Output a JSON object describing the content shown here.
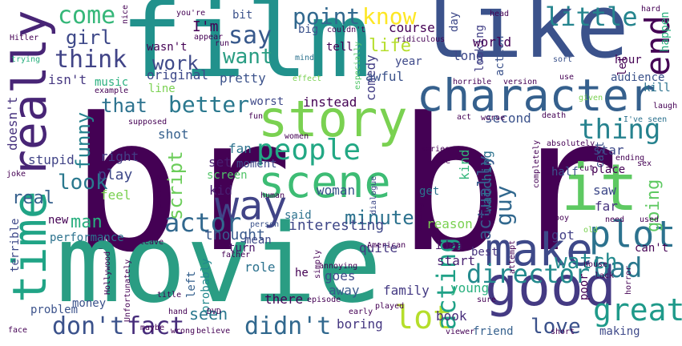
{
  "words": [
    {
      "text": "br",
      "color": "#440154"
    },
    {
      "text": "br",
      "color": "#440154"
    },
    {
      "text": "film",
      "color": "#21918c"
    },
    {
      "text": "movie",
      "color": "#2a9d83"
    },
    {
      "text": "like",
      "color": "#3b528b"
    },
    {
      "text": "it",
      "color": "#5ec962"
    },
    {
      "text": "character",
      "color": "#35608d"
    },
    {
      "text": "good",
      "color": "#443a83"
    },
    {
      "text": "story",
      "color": "#7ad151"
    },
    {
      "text": "scene",
      "color": "#3dbc74"
    },
    {
      "text": "make",
      "color": "#3e4989"
    },
    {
      "text": "really",
      "color": "#482576"
    },
    {
      "text": "time",
      "color": "#20a486"
    },
    {
      "text": "way",
      "color": "#414487"
    },
    {
      "text": "people",
      "color": "#22a884"
    },
    {
      "text": "end",
      "color": "#440154"
    },
    {
      "text": "plot",
      "color": "#2c728e"
    },
    {
      "text": "thing",
      "color": "#26828e"
    },
    {
      "text": "bad",
      "color": "#2a788e"
    },
    {
      "text": "great",
      "color": "#1f9a8a"
    },
    {
      "text": "actor",
      "color": "#31688e"
    },
    {
      "text": "don't",
      "color": "#3b528b"
    },
    {
      "text": "fact",
      "color": "#472d7b"
    },
    {
      "text": "didn't",
      "color": "#31688e"
    },
    {
      "text": "lot",
      "color": "#b5de2b"
    },
    {
      "text": "acting",
      "color": "#1fa187"
    },
    {
      "text": "director",
      "color": "#238a8d"
    },
    {
      "text": "watch",
      "color": "#238a8d"
    },
    {
      "text": "love",
      "color": "#3b528b"
    },
    {
      "text": "better",
      "color": "#2a788e"
    },
    {
      "text": "that",
      "color": "#2c728e"
    },
    {
      "text": "think",
      "color": "#414487"
    },
    {
      "text": "come",
      "color": "#35b779"
    },
    {
      "text": "know",
      "color": "#fde725"
    },
    {
      "text": "point",
      "color": "#31688e"
    },
    {
      "text": "say",
      "color": "#38598c"
    },
    {
      "text": "want",
      "color": "#2a9d83"
    },
    {
      "text": "work",
      "color": "#3e4989"
    },
    {
      "text": "life",
      "color": "#b5de2b"
    },
    {
      "text": "little",
      "color": "#25858e"
    },
    {
      "text": "girl",
      "color": "#3e4989"
    },
    {
      "text": "funny",
      "color": "#26828e"
    },
    {
      "text": "look",
      "color": "#2a788e"
    },
    {
      "text": "script",
      "color": "#6ccd5a"
    },
    {
      "text": "minute",
      "color": "#2c728e"
    },
    {
      "text": "guy",
      "color": "#31688e"
    },
    {
      "text": "actually",
      "color": "#38598c"
    },
    {
      "text": "going",
      "color": "#5ec962"
    },
    {
      "text": "man",
      "color": "#29af7f"
    },
    {
      "text": "real",
      "color": "#35608d"
    },
    {
      "text": "seen",
      "color": "#2a788e"
    },
    {
      "text": "interesting",
      "color": "#3f4788"
    },
    {
      "text": "thought",
      "color": "#38598c"
    },
    {
      "text": "I'm",
      "color": "#440154"
    },
    {
      "text": "wasn't",
      "color": "#440154"
    },
    {
      "text": "original",
      "color": "#3e4989"
    },
    {
      "text": "music",
      "color": "#2ab07f"
    },
    {
      "text": "pretty",
      "color": "#3b528b"
    },
    {
      "text": "line",
      "color": "#7ad151"
    },
    {
      "text": "worst",
      "color": "#3e4989"
    },
    {
      "text": "instead",
      "color": "#440154"
    },
    {
      "text": "isn't",
      "color": "#453781"
    },
    {
      "text": "doesn't",
      "color": "#46327e"
    },
    {
      "text": "shot",
      "color": "#35608d"
    },
    {
      "text": "right",
      "color": "#433e85"
    },
    {
      "text": "play",
      "color": "#3e4989"
    },
    {
      "text": "stupid",
      "color": "#414487"
    },
    {
      "text": "feel",
      "color": "#7ad151"
    },
    {
      "text": "kid",
      "color": "#481f70"
    },
    {
      "text": "screen",
      "color": "#52c569"
    },
    {
      "text": "set",
      "color": "#481f70"
    },
    {
      "text": "fan",
      "color": "#2c728e"
    },
    {
      "text": "moment",
      "color": "#3e4989"
    },
    {
      "text": "woman",
      "color": "#3b528b"
    },
    {
      "text": "said",
      "color": "#2c728e"
    },
    {
      "text": "mean",
      "color": "#3e4989"
    },
    {
      "text": "quite",
      "color": "#453781"
    },
    {
      "text": "turn",
      "color": "#471365"
    },
    {
      "text": "role",
      "color": "#2c728e"
    },
    {
      "text": "he",
      "color": "#440154"
    },
    {
      "text": "goes",
      "color": "#3e4989"
    },
    {
      "text": "away",
      "color": "#38598c"
    },
    {
      "text": "there",
      "color": "#440154"
    },
    {
      "text": "probably",
      "color": "#23898e"
    },
    {
      "text": "left",
      "color": "#35608d"
    },
    {
      "text": "new",
      "color": "#440154"
    },
    {
      "text": "performance",
      "color": "#2c728e"
    },
    {
      "text": "money",
      "color": "#3b528b"
    },
    {
      "text": "problem",
      "color": "#3b528b"
    },
    {
      "text": "terrible",
      "color": "#3e4989"
    },
    {
      "text": "boring",
      "color": "#453781"
    },
    {
      "text": "book",
      "color": "#472d7b"
    },
    {
      "text": "family",
      "color": "#443a83"
    },
    {
      "text": "young",
      "color": "#2ab07f"
    },
    {
      "text": "start",
      "color": "#481f70"
    },
    {
      "text": "idea",
      "color": "#471063"
    },
    {
      "text": "best",
      "color": "#46327e"
    },
    {
      "text": "reason",
      "color": "#7ad151"
    },
    {
      "text": "got",
      "color": "#424086"
    },
    {
      "text": "saw",
      "color": "#3e4989"
    },
    {
      "text": "far",
      "color": "#46327e"
    },
    {
      "text": "cast",
      "color": "#3b528b"
    },
    {
      "text": "star",
      "color": "#3e4989"
    },
    {
      "text": "kind",
      "color": "#32b67a"
    },
    {
      "text": "watching",
      "color": "#2c728e"
    },
    {
      "text": "get",
      "color": "#2c728e"
    },
    {
      "text": "second",
      "color": "#3b528b"
    },
    {
      "text": "comedy",
      "color": "#433e85"
    },
    {
      "text": "course",
      "color": "#440154"
    },
    {
      "text": "year",
      "color": "#3e4989"
    },
    {
      "text": "awful",
      "color": "#3b528b"
    },
    {
      "text": "long",
      "color": "#3e4989"
    },
    {
      "text": "looking",
      "color": "#424086"
    },
    {
      "text": "action",
      "color": "#3b528b"
    },
    {
      "text": "world",
      "color": "#440154"
    },
    {
      "text": "day",
      "color": "#3e4989"
    },
    {
      "text": "hour",
      "color": "#440154"
    },
    {
      "text": "audience",
      "color": "#3b528b"
    },
    {
      "text": "kill",
      "color": "#2c728e"
    },
    {
      "text": "happen",
      "color": "#2ab07f"
    },
    {
      "text": "let",
      "color": "#440154"
    },
    {
      "text": "tell",
      "color": "#440154"
    },
    {
      "text": "big",
      "color": "#3b528b"
    },
    {
      "text": "bit",
      "color": "#3b528b"
    },
    {
      "text": "can't",
      "color": "#440154"
    },
    {
      "text": "friend",
      "color": "#35608d"
    },
    {
      "text": "making",
      "color": "#3e4989"
    },
    {
      "text": "poor",
      "color": "#440154"
    },
    {
      "text": "hard",
      "color": "#440154"
    },
    {
      "text": "Hitler",
      "color": "#440154"
    },
    {
      "text": "trying",
      "color": "#2ab07f"
    },
    {
      "text": "you're",
      "color": "#440154"
    },
    {
      "text": "appear",
      "color": "#440154"
    },
    {
      "text": "nice",
      "color": "#440154"
    },
    {
      "text": "couldn't",
      "color": "#440154"
    },
    {
      "text": "ridiculous",
      "color": "#440154"
    },
    {
      "text": "head",
      "color": "#440154"
    },
    {
      "text": "run",
      "color": "#440154"
    },
    {
      "text": "mind",
      "color": "#2c728e"
    },
    {
      "text": "especially",
      "color": "#52c569"
    },
    {
      "text": "effect",
      "color": "#7ad151"
    },
    {
      "text": "horrible",
      "color": "#440154"
    },
    {
      "text": "version",
      "color": "#440154"
    },
    {
      "text": "use",
      "color": "#440154"
    },
    {
      "text": "sort",
      "color": "#3b528b"
    },
    {
      "text": "example",
      "color": "#440154"
    },
    {
      "text": "given",
      "color": "#7ad151"
    },
    {
      "text": "laugh",
      "color": "#440154"
    },
    {
      "text": "I've seen",
      "color": "#2c728e"
    },
    {
      "text": "act",
      "color": "#440154"
    },
    {
      "text": "worse",
      "color": "#440154"
    },
    {
      "text": "death",
      "color": "#440154"
    },
    {
      "text": "human",
      "color": "#440154"
    },
    {
      "text": "person",
      "color": "#3b528b"
    },
    {
      "text": "fun",
      "color": "#440154"
    },
    {
      "text": "supposed",
      "color": "#440154"
    },
    {
      "text": "women",
      "color": "#440154"
    },
    {
      "text": "series",
      "color": "#440154"
    },
    {
      "text": "dialogue",
      "color": "#3e4989"
    },
    {
      "text": "case",
      "color": "#440154"
    },
    {
      "text": "absolutely",
      "color": "#440154"
    },
    {
      "text": "ending",
      "color": "#440154"
    },
    {
      "text": "half",
      "color": "#3b528b"
    },
    {
      "text": "cut",
      "color": "#440154"
    },
    {
      "text": "place",
      "color": "#440154"
    },
    {
      "text": "sex",
      "color": "#440154"
    },
    {
      "text": "joke",
      "color": "#440154"
    },
    {
      "text": "picture",
      "color": "#440154"
    },
    {
      "text": "try",
      "color": "#440154"
    },
    {
      "text": "completely",
      "color": "#440154"
    },
    {
      "text": "killer",
      "color": "#440154"
    },
    {
      "text": "boy",
      "color": "#440154"
    },
    {
      "text": "need",
      "color": "#440154"
    },
    {
      "text": "used",
      "color": "#440154"
    },
    {
      "text": "old",
      "color": "#7ad151"
    },
    {
      "text": "leave",
      "color": "#440154"
    },
    {
      "text": "American",
      "color": "#440154"
    },
    {
      "text": "seeing",
      "color": "#440154"
    },
    {
      "text": "father",
      "color": "#440154"
    },
    {
      "text": "simply",
      "color": "#440154"
    },
    {
      "text": "annoying",
      "color": "#440154"
    },
    {
      "text": "house",
      "color": "#440154"
    },
    {
      "text": "attempt",
      "color": "#440154"
    },
    {
      "text": "lack",
      "color": "#440154"
    },
    {
      "text": "horror",
      "color": "#440154"
    },
    {
      "text": "Hollywood",
      "color": "#440154"
    },
    {
      "text": "Unfortunately",
      "color": "#440154"
    },
    {
      "text": "title",
      "color": "#440154"
    },
    {
      "text": "hand",
      "color": "#440154"
    },
    {
      "text": "DVD",
      "color": "#440154"
    },
    {
      "text": "episode",
      "color": "#440154"
    },
    {
      "text": "played",
      "color": "#440154"
    },
    {
      "text": "early",
      "color": "#440154"
    },
    {
      "text": "sure",
      "color": "#440154"
    },
    {
      "text": "face",
      "color": "#440154"
    },
    {
      "text": "maybe",
      "color": "#440154"
    },
    {
      "text": "wrong",
      "color": "#440154"
    },
    {
      "text": "believe",
      "color": "#440154"
    },
    {
      "text": "viewer",
      "color": "#440154"
    },
    {
      "text": "short",
      "color": "#440154"
    }
  ]
}
